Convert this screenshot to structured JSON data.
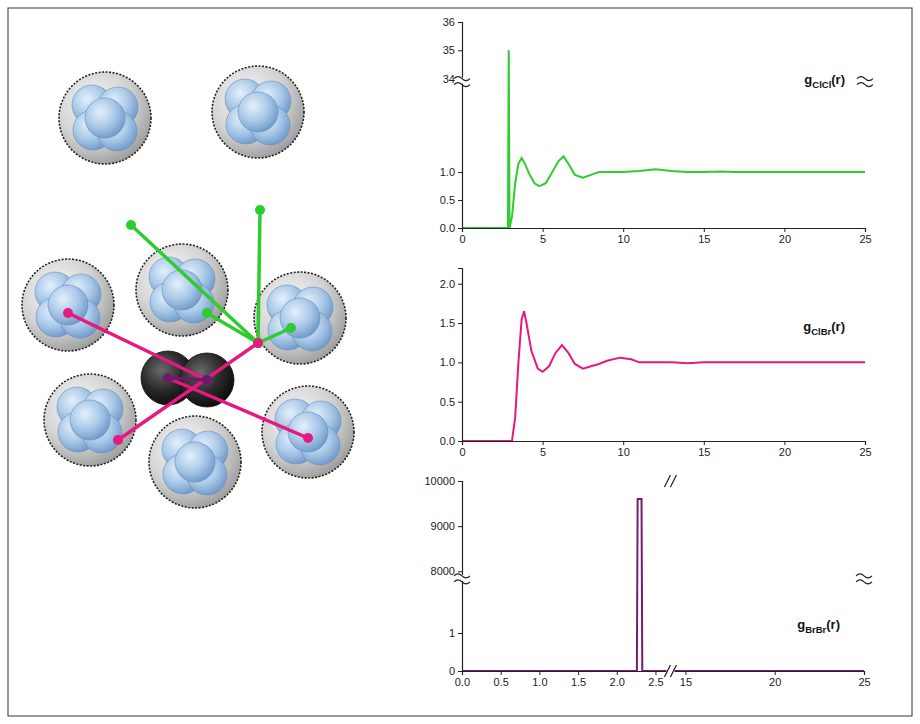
{
  "chart_data": [
    {
      "type": "line",
      "title": "gClCl(r)",
      "color": "#2ecc2e",
      "x": [
        0,
        2.8,
        2.85,
        2.9,
        2.95,
        3.1,
        3.3,
        3.5,
        3.7,
        3.9,
        4.2,
        4.5,
        4.8,
        5.2,
        5.6,
        6.0,
        6.3,
        6.6,
        7.0,
        7.5,
        8.0,
        8.5,
        9.0,
        10,
        11,
        12,
        13,
        14,
        15,
        16,
        17,
        18,
        19,
        20,
        21,
        22,
        23,
        24,
        25
      ],
      "values": [
        0,
        0,
        0,
        35,
        0,
        0.2,
        0.8,
        1.15,
        1.25,
        1.15,
        0.95,
        0.8,
        0.75,
        0.8,
        1.0,
        1.2,
        1.28,
        1.15,
        0.95,
        0.9,
        0.95,
        1.0,
        1.0,
        1.0,
        1.02,
        1.05,
        1.02,
        1.0,
        1.0,
        1.01,
        1.0,
        1.0,
        1.0,
        1.0,
        1.0,
        1.0,
        1.0,
        1.0,
        1.0
      ],
      "xlim": [
        0,
        25
      ],
      "xticks": [
        0,
        5,
        10,
        15,
        20,
        25
      ],
      "ylim": [
        [
          0,
          2.6
        ],
        [
          34,
          36
        ]
      ],
      "yticks": [
        {
          "value": 0,
          "label": "0.0"
        },
        0.5,
        {
          "value": 1,
          "label": "1.0"
        },
        34,
        35,
        36
      ]
    },
    {
      "type": "line",
      "title": "gClBr(r)",
      "color": "#e6197f",
      "x": [
        0,
        3.1,
        3.3,
        3.5,
        3.7,
        3.85,
        4.0,
        4.3,
        4.7,
        5.0,
        5.4,
        5.8,
        6.2,
        6.6,
        7.0,
        7.5,
        8.0,
        8.5,
        9.0,
        9.8,
        10.5,
        11,
        12,
        13,
        14,
        15,
        16,
        18,
        20,
        22,
        25
      ],
      "values": [
        0,
        0,
        0.3,
        1.0,
        1.55,
        1.65,
        1.5,
        1.15,
        0.92,
        0.88,
        0.95,
        1.12,
        1.22,
        1.12,
        0.98,
        0.92,
        0.95,
        0.98,
        1.02,
        1.06,
        1.04,
        1.0,
        1.0,
        1.0,
        0.99,
        1.0,
        1.0,
        1.0,
        1.0,
        1.0,
        1.0
      ],
      "xlim": [
        0,
        25
      ],
      "xticks": [
        0,
        5,
        10,
        15,
        20,
        25
      ],
      "ylim": [
        0,
        2.2
      ],
      "yticks": [
        {
          "value": 0,
          "label": "0.0"
        },
        0.5,
        {
          "value": 1,
          "label": "1.0"
        },
        1.5,
        {
          "value": 2,
          "label": "2.0"
        }
      ]
    },
    {
      "type": "line",
      "title": "gBrBr(r)",
      "color": "#7a1a6e",
      "x": [
        0,
        2.26,
        2.27,
        2.32,
        2.33,
        25
      ],
      "values": [
        0,
        0,
        9600,
        9600,
        0,
        0
      ],
      "xlim": [
        [
          0,
          2.5
        ],
        [
          15,
          25
        ]
      ],
      "xticks": [
        {
          "value": 0,
          "label": "0.0"
        },
        0.5,
        {
          "value": 1,
          "label": "1.0"
        },
        1.5,
        {
          "value": 2,
          "label": "2.0"
        },
        2.5,
        15,
        20,
        25
      ],
      "ylim": [
        [
          0,
          2.4
        ],
        [
          7900,
          10000
        ]
      ],
      "yticks": [
        0,
        1,
        8000,
        9000,
        10000
      ]
    }
  ]
}
